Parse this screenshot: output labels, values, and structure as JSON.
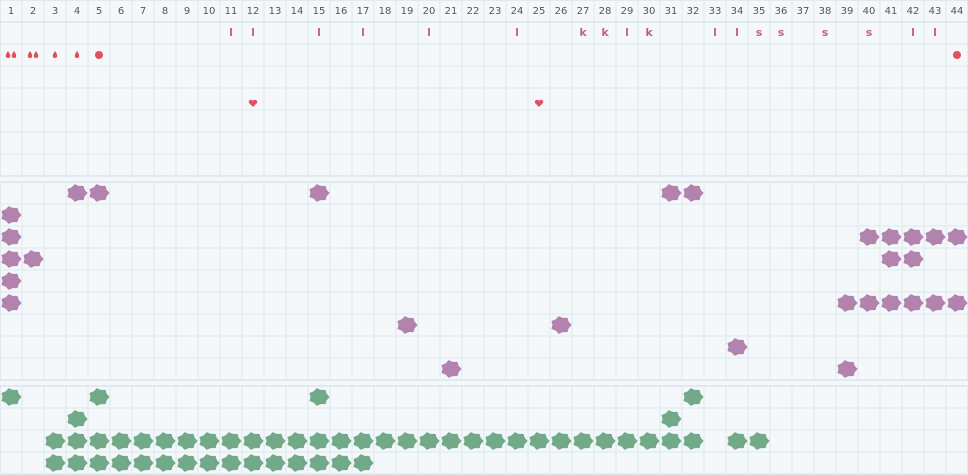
{
  "header": {
    "days": [
      1,
      2,
      3,
      4,
      5,
      6,
      7,
      8,
      9,
      10,
      11,
      12,
      13,
      14,
      15,
      16,
      17,
      18,
      19,
      20,
      21,
      22,
      23,
      24,
      25,
      26,
      27,
      28,
      29,
      30,
      31,
      32,
      33,
      34,
      35,
      36,
      37,
      38,
      39,
      40,
      41,
      42,
      43,
      44
    ]
  },
  "top_section": {
    "letters": [
      {
        "day": 11,
        "label": "l"
      },
      {
        "day": 12,
        "label": "l"
      },
      {
        "day": 15,
        "label": "l"
      },
      {
        "day": 17,
        "label": "l"
      },
      {
        "day": 20,
        "label": "l"
      },
      {
        "day": 24,
        "label": "l"
      },
      {
        "day": 27,
        "label": "k"
      },
      {
        "day": 28,
        "label": "k"
      },
      {
        "day": 29,
        "label": "l"
      },
      {
        "day": 30,
        "label": "k"
      },
      {
        "day": 33,
        "label": "l"
      },
      {
        "day": 34,
        "label": "l"
      },
      {
        "day": 35,
        "label": "s"
      },
      {
        "day": 36,
        "label": "s"
      },
      {
        "day": 38,
        "label": "s"
      },
      {
        "day": 40,
        "label": "s"
      },
      {
        "day": 42,
        "label": "l"
      },
      {
        "day": 43,
        "label": "l"
      }
    ],
    "drops": [
      {
        "day": 1,
        "count": 2
      },
      {
        "day": 2,
        "count": 2
      },
      {
        "day": 3,
        "count": 1
      },
      {
        "day": 4,
        "count": 1
      }
    ],
    "dots": [
      5,
      44
    ],
    "hearts": [
      12,
      25
    ]
  },
  "purple_rows": [
    [
      4,
      5,
      15,
      31,
      32
    ],
    [
      1
    ],
    [
      1,
      40,
      41,
      42,
      43,
      44
    ],
    [
      1,
      2,
      41,
      42
    ],
    [
      1
    ],
    [
      1,
      39,
      40,
      41,
      42,
      43,
      44
    ],
    [
      19,
      26
    ],
    [
      34
    ],
    [
      21,
      39
    ]
  ],
  "green_rows": [
    [
      1,
      5,
      15,
      32
    ],
    [
      4,
      31
    ],
    [
      3,
      4,
      5,
      6,
      7,
      8,
      9,
      10,
      11,
      12,
      13,
      14,
      15,
      16,
      17,
      18,
      19,
      20,
      21,
      22,
      23,
      24,
      25,
      26,
      27,
      28,
      29,
      30,
      31,
      32,
      34,
      35
    ],
    [
      3,
      4,
      5,
      6,
      7,
      8,
      9,
      10,
      11,
      12,
      13,
      14,
      15,
      16,
      17
    ]
  ]
}
